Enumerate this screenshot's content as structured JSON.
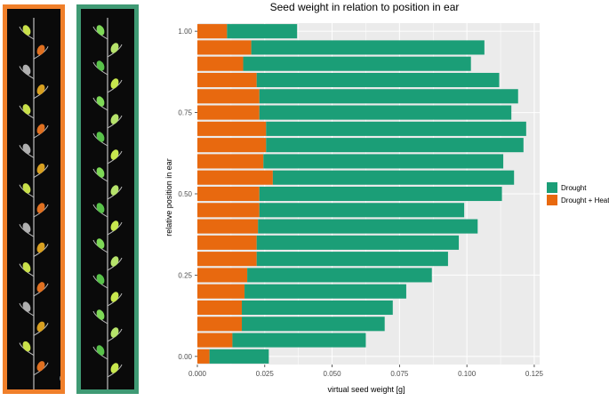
{
  "images": {
    "left": {
      "border_color": "#f07f2a",
      "top_label": "1",
      "bottom_label": "0"
    },
    "right": {
      "border_color": "#3f9a74",
      "top_label": "1",
      "bottom_label": "0"
    }
  },
  "colors": {
    "drought": "#1b9e77",
    "drought_heat": "#e8690f",
    "panel_bg": "#ebebeb",
    "grid": "#ffffff"
  },
  "chart_data": {
    "type": "bar",
    "orientation": "horizontal",
    "stacked": true,
    "title": "Seed weight in relation to position in ear",
    "xlabel": "virtual seed weight [g]",
    "ylabel": "relative position in ear",
    "xlim": [
      0,
      0.127
    ],
    "ylim": [
      -0.025,
      1.025
    ],
    "x_ticks": [
      0.0,
      0.025,
      0.05,
      0.075,
      0.1,
      0.125
    ],
    "x_tick_labels": [
      "0.000",
      "0.025",
      "0.050",
      "0.075",
      "0.100",
      "0.125"
    ],
    "y_ticks": [
      0,
      0.25,
      0.5,
      0.75,
      1.0
    ],
    "y_tick_labels": [
      "0.00",
      "0.25",
      "0.50",
      "0.75",
      "1.00"
    ],
    "y": [
      0.0,
      0.05,
      0.1,
      0.15,
      0.2,
      0.25,
      0.3,
      0.35,
      0.4,
      0.45,
      0.5,
      0.55,
      0.6,
      0.65,
      0.7,
      0.75,
      0.8,
      0.85,
      0.9,
      0.95,
      1.0
    ],
    "series": [
      {
        "name": "Drought + Heat",
        "color": "#e8690f",
        "values": [
          0.0045,
          0.013,
          0.0165,
          0.0165,
          0.0175,
          0.0185,
          0.022,
          0.022,
          0.0225,
          0.023,
          0.023,
          0.028,
          0.0245,
          0.0255,
          0.0255,
          0.023,
          0.023,
          0.022,
          0.017,
          0.02,
          0.011
        ]
      },
      {
        "name": "Drought",
        "color": "#1b9e77",
        "values": [
          0.022,
          0.0495,
          0.053,
          0.056,
          0.06,
          0.0685,
          0.071,
          0.075,
          0.0815,
          0.076,
          0.09,
          0.0895,
          0.089,
          0.0955,
          0.0965,
          0.0935,
          0.096,
          0.09,
          0.0845,
          0.0865,
          0.026
        ]
      }
    ],
    "legend": {
      "position": "right",
      "entries": [
        "Drought",
        "Drought + Heat"
      ]
    },
    "grid": true
  }
}
